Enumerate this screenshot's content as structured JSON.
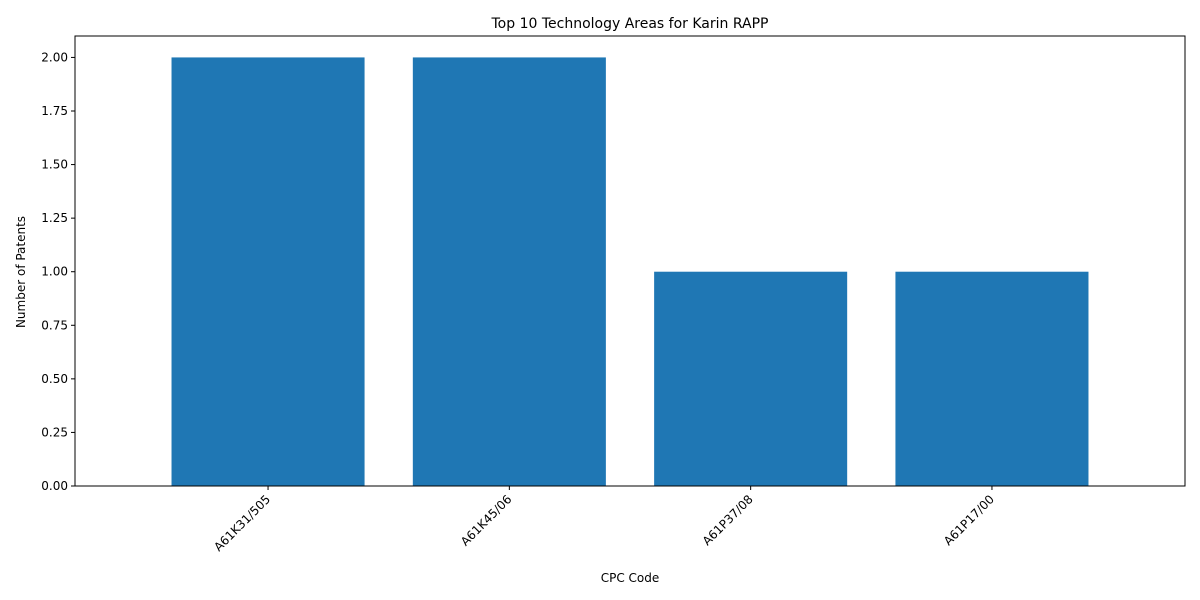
{
  "chart_data": {
    "type": "bar",
    "title": "Top 10 Technology Areas for Karin RAPP",
    "xlabel": "CPC Code",
    "ylabel": "Number of Patents",
    "categories": [
      "A61K31/505",
      "A61K45/06",
      "A61P37/08",
      "A61P17/00"
    ],
    "values": [
      2,
      2,
      1,
      1
    ],
    "ylim": [
      0,
      2.1
    ],
    "yticks": [
      0.0,
      0.25,
      0.5,
      0.75,
      1.0,
      1.25,
      1.5,
      1.75,
      2.0
    ],
    "ytick_labels": [
      "0.00",
      "0.25",
      "0.50",
      "0.75",
      "1.00",
      "1.25",
      "1.50",
      "1.75",
      "2.00"
    ],
    "grid": false,
    "bar_color": "#1f77b4"
  }
}
